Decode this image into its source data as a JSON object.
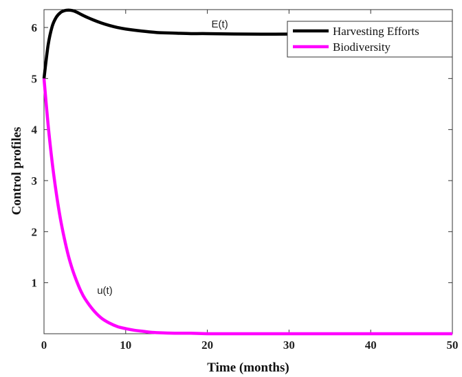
{
  "chart_data": {
    "type": "line",
    "title": "",
    "xlabel": "Time (months)",
    "ylabel": "Control profiles",
    "xlim": [
      0,
      50
    ],
    "ylim": [
      0,
      6.35
    ],
    "xticks": [
      0,
      10,
      20,
      30,
      40,
      50
    ],
    "yticks": [
      1,
      2,
      3,
      4,
      5,
      6
    ],
    "grid": false,
    "legend": "top-right",
    "series": [
      {
        "name": "Harvesting  Efforts",
        "color": "#000000",
        "x": [
          0,
          0.5,
          1,
          1.5,
          2,
          2.5,
          3,
          3.5,
          4,
          5,
          6,
          7,
          8,
          9,
          10,
          12,
          14,
          16,
          18,
          20,
          25,
          30,
          35,
          40,
          45,
          50
        ],
        "y": [
          5.0,
          5.65,
          6.02,
          6.2,
          6.29,
          6.33,
          6.34,
          6.33,
          6.3,
          6.22,
          6.15,
          6.09,
          6.04,
          6.0,
          5.97,
          5.93,
          5.9,
          5.89,
          5.88,
          5.88,
          5.87,
          5.87,
          5.87,
          5.87,
          5.87,
          5.87
        ]
      },
      {
        "name": "Biodiversity",
        "color": "#ff00ff",
        "x": [
          0,
          0.5,
          1,
          1.5,
          2,
          2.5,
          3,
          3.5,
          4,
          4.5,
          5,
          6,
          7,
          8,
          9,
          10,
          11,
          12,
          13,
          14,
          16,
          18,
          20,
          25,
          30,
          35,
          40,
          45,
          50
        ],
        "y": [
          5.0,
          4.1,
          3.36,
          2.76,
          2.26,
          1.86,
          1.52,
          1.25,
          1.03,
          0.84,
          0.69,
          0.47,
          0.31,
          0.21,
          0.14,
          0.1,
          0.07,
          0.05,
          0.03,
          0.02,
          0.01,
          0.01,
          0.0,
          0.0,
          0.0,
          0.0,
          0.0,
          0.0,
          0.0
        ]
      }
    ],
    "annotations": [
      {
        "text": "E(t)",
        "x": 20.5,
        "y": 6.0
      },
      {
        "text": "u(t)",
        "x": 6.5,
        "y": 0.78
      }
    ]
  }
}
